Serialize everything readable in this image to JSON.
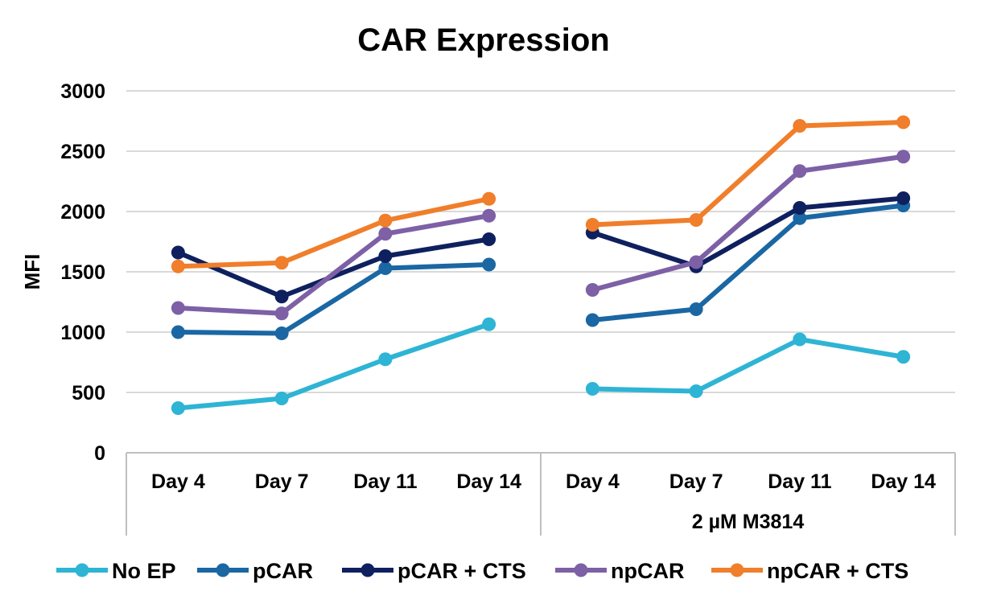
{
  "chart_data": {
    "type": "line",
    "title": "CAR Expression",
    "xlabel": "",
    "ylabel": "MFI",
    "ylim": [
      0,
      3000
    ],
    "yticks": [
      0,
      500,
      1000,
      1500,
      2000,
      2500,
      3000
    ],
    "grid": true,
    "legend_position": "bottom",
    "categories": [
      "Day 4",
      "Day 7",
      "Day 11",
      "Day 14",
      "Day 4",
      "Day 7",
      "Day 11",
      "Day 14"
    ],
    "groups": [
      {
        "label": "",
        "count": 4
      },
      {
        "label": "2 µM M3814",
        "count": 4
      }
    ],
    "series": [
      {
        "name": "No EP",
        "color": "#2eb4d4",
        "values": [
          370,
          450,
          775,
          1065,
          530,
          510,
          940,
          795
        ]
      },
      {
        "name": "pCAR",
        "color": "#1a67a3",
        "values": [
          1000,
          990,
          1530,
          1560,
          1100,
          1190,
          1945,
          2050
        ]
      },
      {
        "name": "pCAR + CTS",
        "color": "#0f205f",
        "values": [
          1660,
          1295,
          1630,
          1770,
          1825,
          1545,
          2030,
          2110
        ]
      },
      {
        "name": "npCAR",
        "color": "#7d60a6",
        "values": [
          1200,
          1155,
          1815,
          1965,
          1350,
          1580,
          2335,
          2455
        ]
      },
      {
        "name": "npCAR + CTS",
        "color": "#f07e2a",
        "values": [
          1545,
          1575,
          1925,
          2105,
          1890,
          1930,
          2710,
          2740
        ]
      }
    ]
  }
}
